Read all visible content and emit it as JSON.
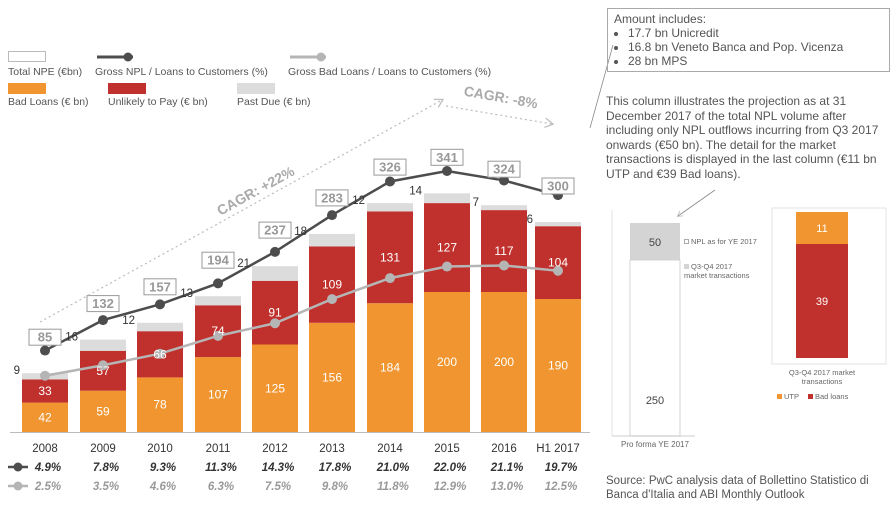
{
  "legend": {
    "total_npe": "Total NPE (€bn)",
    "gross_npl": "Gross NPL / Loans to Customers (%)",
    "gross_bad": "Gross Bad Loans / Loans to Customers (%)",
    "bad_loans": "Bad Loans (€ bn)",
    "unlikely": "Unlikely to Pay (€ bn)",
    "past_due": "Past Due (€ bn)"
  },
  "cagr_up": "CAGR: +22%",
  "cagr_down": "CAGR: -8%",
  "amount_box": {
    "title": "Amount includes:",
    "items": [
      "17.7 bn Unicredit",
      "16.8 bn Veneto Banca and Pop. Vicenza",
      "28 bn MPS"
    ]
  },
  "projection_note": "This column illustrates the projection as at 31 December 2017 of the total NPL volume after including only NPL outflows incurring from Q3 2017 onwards (€50 bn). The detail for the market transactions is displayed in the last column (€11 bn UTP and €39 Bad loans).",
  "source": "Source: PwC analysis data of Bollettino Statistico di Banca d'Italia and ABI Monthly Outlook",
  "colors": {
    "bad": "#f0952f",
    "utp": "#c0302c",
    "past_due": "#dcdcdc",
    "npl_line": "#4d4d4d",
    "bad_line": "#b5b5b5",
    "proforma_top": "#d4d4d4"
  },
  "chart_data": [
    {
      "type": "bar",
      "stacked": true,
      "categories": [
        "2008",
        "2009",
        "2010",
        "2011",
        "2012",
        "2013",
        "2014",
        "2015",
        "2016",
        "H1 2017"
      ],
      "series": [
        {
          "name": "Bad Loans (€ bn)",
          "values": [
            42,
            59,
            78,
            107,
            125,
            156,
            184,
            200,
            200,
            190
          ]
        },
        {
          "name": "Unlikely to Pay (€ bn)",
          "values": [
            33,
            57,
            66,
            74,
            91,
            109,
            131,
            127,
            117,
            104
          ]
        },
        {
          "name": "Past Due (€ bn)",
          "values": [
            9,
            16,
            12,
            13,
            21,
            18,
            12,
            14,
            7,
            6
          ]
        }
      ],
      "totals_label": "Total NPE (€bn)",
      "totals": [
        85,
        132,
        157,
        194,
        237,
        283,
        326,
        341,
        324,
        300
      ],
      "lines": [
        {
          "name": "Gross NPL / Loans to Customers (%)",
          "values": [
            4.9,
            7.8,
            9.3,
            11.3,
            14.3,
            17.8,
            21.0,
            22.0,
            21.1,
            19.7
          ],
          "labels": [
            "4.9%",
            "7.8%",
            "9.3%",
            "11.3%",
            "14.3%",
            "17.8%",
            "21.0%",
            "22.0%",
            "21.1%",
            "19.7%"
          ]
        },
        {
          "name": "Gross Bad Loans / Loans to Customers (%)",
          "values": [
            2.5,
            3.5,
            4.6,
            6.3,
            7.5,
            9.8,
            11.8,
            12.9,
            13.0,
            12.5
          ],
          "labels": [
            "2.5%",
            "3.5%",
            "4.6%",
            "6.3%",
            "7.5%",
            "9.8%",
            "11.8%",
            "12.9%",
            "13.0%",
            "12.5%"
          ]
        }
      ]
    },
    {
      "type": "bar",
      "categories": [
        "Pro forma YE 2017"
      ],
      "series": [
        {
          "name": "NPL as for YE 2017",
          "values": [
            250
          ]
        },
        {
          "name": "Q3-Q4 2017 market transactions",
          "values": [
            50
          ]
        }
      ]
    },
    {
      "type": "bar",
      "categories": [
        "Q3-Q4 2017 market transactions"
      ],
      "series": [
        {
          "name": "Bad loans",
          "values": [
            39
          ]
        },
        {
          "name": "UTP",
          "values": [
            11
          ]
        }
      ]
    }
  ],
  "small_legend": {
    "npl_ye": "NPL as for YE 2017",
    "q3q4": "Q3-Q4 2017 market transactions",
    "utp": "UTP",
    "bad": "Bad loans"
  }
}
